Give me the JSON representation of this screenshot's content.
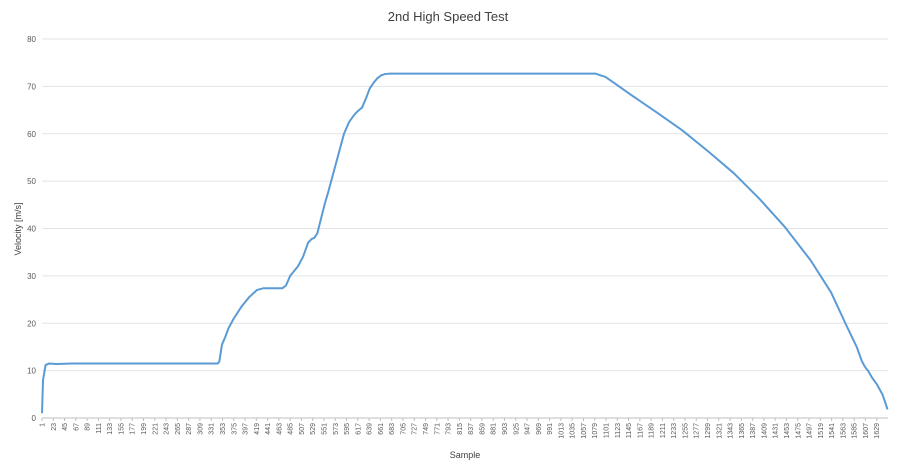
{
  "chart_data": {
    "type": "line",
    "title": "2nd High Speed Test",
    "xlabel": "Sample",
    "ylabel": "Velocity [m/s]",
    "ylim": [
      0,
      80
    ],
    "yticks": [
      0,
      10,
      20,
      30,
      40,
      50,
      60,
      70,
      80
    ],
    "grid": true,
    "legend": "none",
    "x_range": [
      1,
      1651
    ],
    "xtick_labels": [
      "1",
      "23",
      "45",
      "67",
      "89",
      "111",
      "133",
      "155",
      "177",
      "199",
      "221",
      "243",
      "265",
      "287",
      "309",
      "331",
      "353",
      "375",
      "397",
      "419",
      "441",
      "463",
      "485",
      "507",
      "529",
      "551",
      "573",
      "595",
      "617",
      "639",
      "661",
      "683",
      "705",
      "727",
      "749",
      "771",
      "793",
      "815",
      "837",
      "859",
      "881",
      "903",
      "925",
      "947",
      "969",
      "991",
      "1013",
      "1035",
      "1057",
      "1079",
      "1101",
      "1123",
      "1145",
      "1167",
      "1189",
      "1211",
      "1233",
      "1255",
      "1277",
      "1299",
      "1321",
      "1343",
      "1365",
      "1387",
      "1409",
      "1431",
      "1453",
      "1475",
      "1497",
      "1519",
      "1541",
      "1563",
      "1585",
      "1607",
      "1629"
    ],
    "series": [
      {
        "color": "#5b9bd5",
        "x": [
          1,
          3,
          8,
          15,
          30,
          60,
          120,
          200,
          300,
          344,
          347,
          352,
          358,
          365,
          375,
          390,
          405,
          420,
          433,
          440,
          450,
          460,
          470,
          477,
          485,
          500,
          510,
          520,
          527,
          532,
          538,
          545,
          552,
          560,
          570,
          580,
          590,
          600,
          610,
          617,
          625,
          633,
          640,
          648,
          655,
          662,
          670,
          680,
          690,
          700,
          720,
          760,
          800,
          900,
          1000,
          1080,
          1100,
          1120,
          1150,
          1200,
          1250,
          1300,
          1350,
          1400,
          1450,
          1500,
          1540,
          1570,
          1590,
          1600,
          1605,
          1608,
          1612,
          1620,
          1630,
          1640,
          1645,
          1650
        ],
        "y": [
          1,
          8,
          11.2,
          11.5,
          11.4,
          11.5,
          11.5,
          11.5,
          11.5,
          11.5,
          12,
          15.5,
          17,
          19,
          21,
          23.5,
          25.5,
          27,
          27.4,
          27.4,
          27.4,
          27.4,
          27.4,
          28,
          30,
          32,
          34,
          37,
          37.8,
          38,
          39,
          42,
          45,
          48,
          52,
          56,
          60,
          62.5,
          64,
          64.8,
          65.5,
          67.5,
          69.5,
          70.8,
          71.7,
          72.3,
          72.6,
          72.7,
          72.7,
          72.7,
          72.7,
          72.7,
          72.7,
          72.7,
          72.7,
          72.7,
          72,
          70.5,
          68.2,
          64.5,
          60.7,
          56.3,
          51.7,
          46.3,
          40.3,
          33.3,
          26.5,
          19.5,
          15,
          12,
          11,
          10.5,
          10,
          8.5,
          7,
          5,
          3.5,
          1.8
        ]
      }
    ]
  }
}
